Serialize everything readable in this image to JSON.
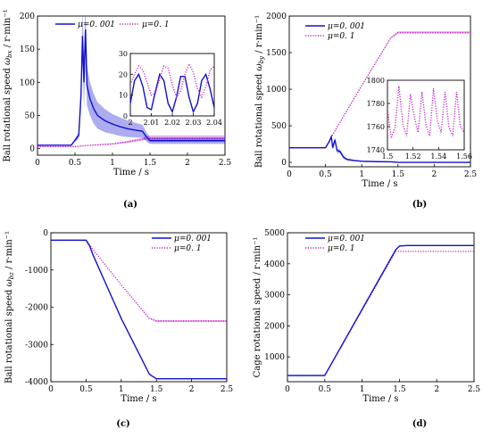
{
  "colors": {
    "low_mu": "#1010d0",
    "high_mu": "#c020c8",
    "axis": "#000000"
  },
  "chart_data": [
    {
      "id": "a",
      "type": "line",
      "panel_label": "(a)",
      "xlabel": "Time / s",
      "ylabel": "Ball rotational speed ω_bx / r·min⁻¹",
      "ylabel_main": "Ball rotational speed ",
      "ylabel_sym": "ω",
      "ylabel_sub": "bx",
      "ylabel_unit": " / r·min⁻¹",
      "xlim": [
        0,
        2.5
      ],
      "ylim": [
        -10,
        200
      ],
      "xticks": [
        0,
        0.5,
        1,
        1.5,
        2,
        2.5
      ],
      "xtick_labels": [
        "0",
        "0.5",
        "1",
        "1.5",
        "2",
        "2.5"
      ],
      "yticks": [
        0,
        50,
        100,
        150,
        200
      ],
      "ytick_labels": [
        "0",
        "50",
        "100",
        "150",
        "200"
      ],
      "legend_placement": "top",
      "series": [
        {
          "name": "μ=0. 001",
          "style": "solid",
          "x": [
            0,
            0.45,
            0.55,
            0.58,
            0.6,
            0.62,
            0.64,
            0.66,
            0.7,
            0.75,
            0.8,
            0.9,
            1.0,
            1.1,
            1.2,
            1.3,
            1.4,
            1.45,
            1.5,
            2.0,
            2.5
          ],
          "y": [
            5,
            5,
            20,
            80,
            170,
            100,
            180,
            95,
            75,
            60,
            50,
            42,
            37,
            33,
            30,
            28,
            26,
            18,
            12,
            12,
            12
          ],
          "band": [
            0,
            0,
            10,
            40,
            80,
            80,
            80,
            60,
            50,
            45,
            40,
            35,
            30,
            28,
            25,
            22,
            20,
            14,
            10,
            10,
            10
          ]
        },
        {
          "name": "μ=0. 1",
          "style": "dotted",
          "x": [
            0,
            0.5,
            0.7,
            1.0,
            1.2,
            1.4,
            1.45,
            1.5,
            2.0,
            2.5
          ],
          "y": [
            3,
            3,
            5,
            7,
            10,
            14,
            16,
            15,
            15,
            15
          ],
          "band": [
            1,
            1,
            1,
            2,
            3,
            4,
            6,
            10,
            10,
            10
          ]
        }
      ],
      "inset": {
        "xlim": [
          2,
          2.04
        ],
        "ylim": [
          0,
          30
        ],
        "xticks": [
          2,
          2.01,
          2.02,
          2.03,
          2.04
        ],
        "xtick_labels": [
          "2",
          "2.01",
          "2.02",
          "2.03",
          "2.04"
        ],
        "yticks": [
          0,
          10,
          20,
          30
        ],
        "ytick_labels": [
          "0",
          "10",
          "20",
          "30"
        ],
        "series": [
          {
            "style": "solid",
            "x": [
              2.0,
              2.002,
              2.004,
              2.006,
              2.008,
              2.01,
              2.012,
              2.014,
              2.016,
              2.018,
              2.02,
              2.022,
              2.024,
              2.026,
              2.028,
              2.03,
              2.032,
              2.034,
              2.036,
              2.038,
              2.04
            ],
            "y": [
              6,
              17,
              20,
              14,
              4,
              3,
              12,
              20,
              17,
              6,
              2,
              9,
              19,
              19,
              9,
              2,
              6,
              17,
              20,
              13,
              4
            ]
          },
          {
            "style": "dotted",
            "x": [
              2.0,
              2.002,
              2.004,
              2.006,
              2.008,
              2.01,
              2.012,
              2.014,
              2.016,
              2.018,
              2.02,
              2.022,
              2.024,
              2.026,
              2.028,
              2.03,
              2.032,
              2.034,
              2.036,
              2.038,
              2.04
            ],
            "y": [
              15,
              20,
              24,
              22,
              16,
              10,
              11,
              18,
              24,
              23,
              15,
              9,
              12,
              20,
              25,
              21,
              13,
              9,
              14,
              22,
              24
            ]
          }
        ]
      }
    },
    {
      "id": "b",
      "type": "line",
      "panel_label": "(b)",
      "xlabel": "Time / s",
      "ylabel": "Ball rotational speed ω_by / r·min⁻¹",
      "ylabel_main": "Ball rotational speed ",
      "ylabel_sym": "ω",
      "ylabel_sub": "by",
      "ylabel_unit": " / r·min⁻¹",
      "xlim": [
        0,
        2.5
      ],
      "ylim": [
        -60,
        2000
      ],
      "xticks": [
        0,
        0.5,
        1,
        1.5,
        2,
        2.5
      ],
      "xtick_labels": [
        "0",
        "0.5",
        "1",
        "1.5",
        "2",
        "2.5"
      ],
      "yticks": [
        0,
        500,
        1000,
        1500,
        2000
      ],
      "ytick_labels": [
        "0",
        "500",
        "1000",
        "1500",
        "2000"
      ],
      "legend_placement": "top-left",
      "series": [
        {
          "name": "μ=0. 001",
          "style": "solid",
          "x": [
            0,
            0.5,
            0.55,
            0.58,
            0.6,
            0.63,
            0.66,
            0.7,
            0.75,
            0.8,
            0.9,
            1.0,
            1.2,
            1.4,
            1.5,
            2.0,
            2.5
          ],
          "y": [
            200,
            200,
            280,
            350,
            200,
            310,
            160,
            150,
            70,
            40,
            25,
            15,
            10,
            8,
            0,
            0,
            0
          ],
          "band": [
            0,
            0,
            20,
            40,
            60,
            60,
            60,
            50,
            40,
            30,
            20,
            15,
            10,
            10,
            5,
            5,
            5
          ]
        },
        {
          "name": "μ=0. 1",
          "style": "dotted",
          "x": [
            0,
            0.5,
            0.55,
            0.6,
            1.0,
            1.4,
            1.5,
            2.0,
            2.5
          ],
          "y": [
            200,
            200,
            290,
            380,
            1050,
            1700,
            1775,
            1775,
            1775
          ],
          "band": [
            0,
            0,
            0,
            10,
            10,
            20,
            30,
            30,
            30
          ]
        }
      ],
      "inset": {
        "xlim": [
          1.5,
          1.56
        ],
        "ylim": [
          1740,
          1800
        ],
        "xticks": [
          1.5,
          1.52,
          1.54,
          1.56
        ],
        "xtick_labels": [
          "1.5",
          "1.52",
          "1.54",
          "1.56"
        ],
        "yticks": [
          1740,
          1760,
          1780,
          1800
        ],
        "ytick_labels": [
          "1740",
          "1760",
          "1780",
          "1800"
        ],
        "series": [
          {
            "style": "dotted",
            "x": [
              1.5,
              1.503,
              1.506,
              1.509,
              1.512,
              1.515,
              1.518,
              1.521,
              1.524,
              1.527,
              1.53,
              1.533,
              1.536,
              1.539,
              1.542,
              1.545,
              1.548,
              1.551,
              1.554,
              1.557,
              1.56
            ],
            "y": [
              1775,
              1750,
              1760,
              1795,
              1762,
              1752,
              1788,
              1768,
              1755,
              1790,
              1762,
              1752,
              1793,
              1765,
              1755,
              1790,
              1760,
              1752,
              1790,
              1760,
              1755
            ]
          }
        ]
      }
    },
    {
      "id": "c",
      "type": "line",
      "panel_label": "(c)",
      "xlabel": "Time / s",
      "ylabel": "Ball rotational speed ω_bz / r·min⁻¹",
      "ylabel_main": "Ball rotational speed ",
      "ylabel_sym": "ω",
      "ylabel_sub": "bz",
      "ylabel_unit": " / r·min⁻¹",
      "xlim": [
        0,
        2.5
      ],
      "ylim": [
        -4000,
        0
      ],
      "xticks": [
        0,
        0.5,
        1,
        1.5,
        2,
        2.5
      ],
      "xtick_labels": [
        "0",
        "0.5",
        "1",
        "1.5",
        "2",
        "2.5"
      ],
      "yticks": [
        -4000,
        -3000,
        -2000,
        -1000,
        0
      ],
      "ytick_labels": [
        "-4000",
        "-3000",
        "-2000",
        "-1000",
        "0"
      ],
      "legend_placement": "top-right",
      "series": [
        {
          "name": "μ=0. 001",
          "style": "solid",
          "x": [
            0,
            0.5,
            0.55,
            0.6,
            1.0,
            1.4,
            1.5,
            2.0,
            2.5
          ],
          "y": [
            -200,
            -200,
            -350,
            -600,
            -2300,
            -3800,
            -3920,
            -3920,
            -3920
          ],
          "band": [
            0,
            0,
            0,
            0,
            0,
            0,
            0,
            0,
            0
          ]
        },
        {
          "name": "μ=0. 1",
          "style": "dotted",
          "x": [
            0,
            0.5,
            0.6,
            1.0,
            1.4,
            1.5,
            2.0,
            2.5
          ],
          "y": [
            -200,
            -200,
            -450,
            -1400,
            -2300,
            -2370,
            -2370,
            -2370
          ],
          "band": [
            0,
            0,
            0,
            0,
            20,
            50,
            50,
            50
          ]
        }
      ]
    },
    {
      "id": "d",
      "type": "line",
      "panel_label": "(d)",
      "xlabel": "Time / s",
      "ylabel": "Cage rotational speed / r·min⁻¹",
      "ylabel_main": "Cage rotational speed / r·min⁻¹",
      "ylabel_sym": "",
      "ylabel_sub": "",
      "ylabel_unit": "",
      "xlim": [
        0,
        2.5
      ],
      "ylim": [
        200,
        5000
      ],
      "xticks": [
        0,
        0.5,
        1,
        1.5,
        2,
        2.5
      ],
      "xtick_labels": [
        "0",
        "0.5",
        "1",
        "1.5",
        "2",
        "2.5"
      ],
      "yticks": [
        1000,
        2000,
        3000,
        4000,
        5000
      ],
      "ytick_labels": [
        "1000",
        "2000",
        "3000",
        "4000",
        "5000"
      ],
      "legend_placement": "top-left",
      "series": [
        {
          "name": "μ=0. 001",
          "style": "solid",
          "x": [
            0,
            0.5,
            1.45,
            1.5,
            1.6,
            2.0,
            2.5
          ],
          "y": [
            400,
            400,
            4450,
            4570,
            4590,
            4590,
            4590
          ],
          "band": [
            0,
            0,
            0,
            0,
            0,
            0,
            0
          ]
        },
        {
          "name": "μ=0. 1",
          "style": "dotted",
          "x": [
            0,
            0.5,
            1.45,
            1.5,
            2.0,
            2.5
          ],
          "y": [
            400,
            400,
            4400,
            4400,
            4400,
            4400
          ],
          "band": [
            0,
            0,
            0,
            0,
            0,
            0
          ]
        }
      ]
    }
  ]
}
